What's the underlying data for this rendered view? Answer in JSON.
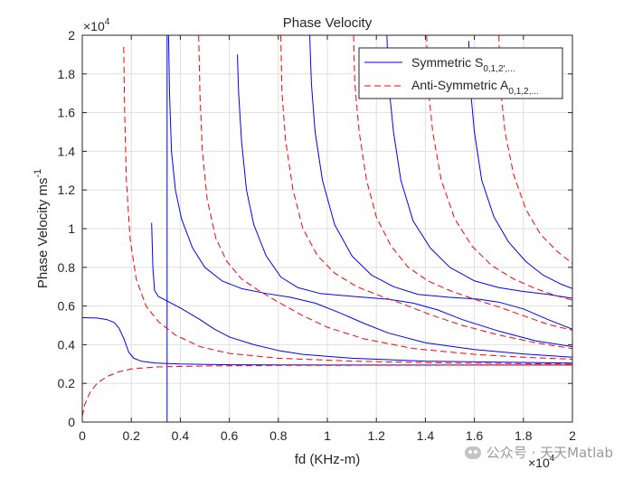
{
  "chart_data": {
    "type": "line",
    "title": "Phase Velocity",
    "xlabel": "fd (KHz-m)",
    "ylabel_base": "Phase Velocity ms",
    "ylabel_sup": "-1",
    "x_multiplier": "×10",
    "x_multiplier_exp": "4",
    "y_multiplier": "×10",
    "y_multiplier_exp": "4",
    "xlim": [
      0,
      20000
    ],
    "ylim": [
      0,
      20000
    ],
    "xticks": [
      0,
      2000,
      4000,
      6000,
      8000,
      10000,
      12000,
      14000,
      16000,
      18000,
      20000
    ],
    "yticks": [
      0,
      2000,
      4000,
      6000,
      8000,
      10000,
      12000,
      14000,
      16000,
      18000,
      20000
    ],
    "xtick_labels": [
      "0",
      "0.2",
      "0.4",
      "0.6",
      "0.8",
      "1",
      "1.2",
      "1.4",
      "1.6",
      "1.8",
      "2"
    ],
    "ytick_labels": [
      "0",
      "0.2",
      "0.4",
      "0.6",
      "0.8",
      "1",
      "1.2",
      "1.4",
      "1.6",
      "1.8",
      "2"
    ],
    "grid": true,
    "legend_position": "top-right",
    "legend": [
      {
        "label": "Symmetric S",
        "sub": "0,1,2',...",
        "color": "#0000ff",
        "style": "solid"
      },
      {
        "label": "Anti-Symmetric A",
        "sub": "0,1,2,...",
        "color": "#ff0000",
        "style": "dashed"
      }
    ],
    "series": [
      {
        "group": "symmetric",
        "color": "#0000ff",
        "style": "solid",
        "points": [
          [
            0,
            5400
          ],
          [
            600,
            5380
          ],
          [
            1000,
            5300
          ],
          [
            1300,
            5150
          ],
          [
            1500,
            4850
          ],
          [
            1700,
            4300
          ],
          [
            1900,
            3600
          ],
          [
            2100,
            3300
          ],
          [
            2400,
            3150
          ],
          [
            3000,
            3050
          ],
          [
            4000,
            3000
          ],
          [
            6000,
            2960
          ],
          [
            10000,
            2950
          ],
          [
            20000,
            2950
          ]
        ]
      },
      {
        "group": "symmetric",
        "color": "#0000ff",
        "style": "dashed_mark",
        "points": [
          [
            2830,
            10300
          ],
          [
            2880,
            8000
          ],
          [
            2950,
            6800
          ],
          [
            3100,
            6500
          ],
          [
            3400,
            6300
          ],
          [
            4000,
            5900
          ],
          [
            4800,
            5300
          ],
          [
            5400,
            4800
          ],
          [
            6000,
            4400
          ],
          [
            7000,
            4000
          ],
          [
            8000,
            3700
          ],
          [
            9000,
            3500
          ],
          [
            11000,
            3300
          ],
          [
            14000,
            3150
          ],
          [
            20000,
            3050
          ]
        ]
      },
      {
        "group": "symmetric",
        "color": "#0000ff",
        "style": "solid",
        "points": [
          [
            3460,
            0
          ],
          [
            3460,
            20000
          ]
        ]
      },
      {
        "group": "symmetric",
        "color": "#0000ff",
        "style": "solid",
        "points": [
          [
            3520,
            20000
          ],
          [
            3560,
            17000
          ],
          [
            3640,
            14000
          ],
          [
            3800,
            12000
          ],
          [
            4050,
            10500
          ],
          [
            4500,
            9000
          ],
          [
            5000,
            8000
          ],
          [
            5700,
            7300
          ],
          [
            6500,
            6900
          ],
          [
            7500,
            6650
          ],
          [
            8500,
            6450
          ],
          [
            9500,
            6150
          ],
          [
            10500,
            5650
          ],
          [
            11500,
            5100
          ],
          [
            12500,
            4600
          ],
          [
            14000,
            4100
          ],
          [
            16000,
            3750
          ],
          [
            18000,
            3520
          ],
          [
            20000,
            3350
          ]
        ]
      },
      {
        "group": "symmetric",
        "color": "#0000ff",
        "style": "solid",
        "points": [
          [
            6330,
            19000
          ],
          [
            6380,
            17000
          ],
          [
            6500,
            14500
          ],
          [
            6700,
            12000
          ],
          [
            7000,
            10200
          ],
          [
            7500,
            8600
          ],
          [
            8100,
            7500
          ],
          [
            8800,
            6950
          ],
          [
            9700,
            6650
          ],
          [
            11000,
            6500
          ],
          [
            12500,
            6350
          ],
          [
            13500,
            6150
          ],
          [
            14500,
            5800
          ],
          [
            15500,
            5300
          ],
          [
            17000,
            4700
          ],
          [
            18500,
            4200
          ],
          [
            20000,
            3900
          ]
        ]
      },
      {
        "group": "symmetric",
        "color": "#0000ff",
        "style": "solid",
        "points": [
          [
            9280,
            20000
          ],
          [
            9350,
            17500
          ],
          [
            9500,
            15000
          ],
          [
            9800,
            12500
          ],
          [
            10300,
            10200
          ],
          [
            11000,
            8600
          ],
          [
            11800,
            7600
          ],
          [
            12700,
            7000
          ],
          [
            13700,
            6600
          ],
          [
            15000,
            6450
          ],
          [
            16200,
            6350
          ],
          [
            17000,
            6200
          ],
          [
            18000,
            5850
          ],
          [
            19000,
            5300
          ],
          [
            20000,
            4800
          ]
        ]
      },
      {
        "group": "symmetric",
        "color": "#0000ff",
        "style": "solid",
        "points": [
          [
            12430,
            20000
          ],
          [
            12500,
            17500
          ],
          [
            12700,
            15000
          ],
          [
            13000,
            12500
          ],
          [
            13500,
            10400
          ],
          [
            14200,
            9000
          ],
          [
            15000,
            8000
          ],
          [
            16000,
            7300
          ],
          [
            17000,
            6950
          ],
          [
            18000,
            6750
          ],
          [
            19000,
            6600
          ],
          [
            20000,
            6400
          ]
        ]
      },
      {
        "group": "symmetric",
        "color": "#0000ff",
        "style": "solid",
        "points": [
          [
            15770,
            19700
          ],
          [
            15820,
            17500
          ],
          [
            16000,
            15000
          ],
          [
            16300,
            12500
          ],
          [
            16800,
            10600
          ],
          [
            17400,
            9300
          ],
          [
            18100,
            8300
          ],
          [
            18800,
            7600
          ],
          [
            19500,
            7150
          ],
          [
            20000,
            6900
          ]
        ]
      },
      {
        "group": "antisymmetric",
        "color": "#ff0000",
        "style": "dashed",
        "points": [
          [
            0,
            300
          ],
          [
            100,
            900
          ],
          [
            300,
            1500
          ],
          [
            600,
            2000
          ],
          [
            1000,
            2350
          ],
          [
            1500,
            2600
          ],
          [
            2000,
            2750
          ],
          [
            3000,
            2850
          ],
          [
            5000,
            2900
          ],
          [
            8000,
            2930
          ],
          [
            20000,
            2950
          ]
        ]
      },
      {
        "group": "antisymmetric",
        "color": "#ff0000",
        "style": "dashed",
        "points": [
          [
            1690,
            19400
          ],
          [
            1730,
            16000
          ],
          [
            1800,
            12500
          ],
          [
            1950,
            9500
          ],
          [
            2200,
            7400
          ],
          [
            2600,
            6000
          ],
          [
            3100,
            5200
          ],
          [
            3800,
            4500
          ],
          [
            4800,
            3900
          ],
          [
            6000,
            3550
          ],
          [
            8000,
            3300
          ],
          [
            11000,
            3150
          ],
          [
            15000,
            3050
          ],
          [
            20000,
            3000
          ]
        ]
      },
      {
        "group": "antisymmetric",
        "color": "#ff0000",
        "style": "dashed",
        "points": [
          [
            4750,
            20000
          ],
          [
            4800,
            17000
          ],
          [
            4900,
            14000
          ],
          [
            5100,
            11500
          ],
          [
            5450,
            9500
          ],
          [
            5900,
            8300
          ],
          [
            6500,
            7400
          ],
          [
            7200,
            6800
          ],
          [
            8000,
            6200
          ],
          [
            9000,
            5500
          ],
          [
            10000,
            4900
          ],
          [
            11500,
            4300
          ],
          [
            13500,
            3800
          ],
          [
            16000,
            3500
          ],
          [
            18000,
            3350
          ],
          [
            20000,
            3250
          ]
        ]
      },
      {
        "group": "antisymmetric",
        "color": "#ff0000",
        "style": "dashed",
        "points": [
          [
            8100,
            20000
          ],
          [
            8150,
            17000
          ],
          [
            8300,
            14500
          ],
          [
            8600,
            12000
          ],
          [
            9000,
            10000
          ],
          [
            9600,
            8600
          ],
          [
            10300,
            7700
          ],
          [
            11200,
            7000
          ],
          [
            12200,
            6500
          ],
          [
            13200,
            6050
          ],
          [
            14200,
            5550
          ],
          [
            15500,
            5000
          ],
          [
            17000,
            4500
          ],
          [
            18500,
            4100
          ],
          [
            20000,
            3800
          ]
        ]
      },
      {
        "group": "antisymmetric",
        "color": "#ff0000",
        "style": "dashed",
        "points": [
          [
            11070,
            20000
          ],
          [
            11120,
            17500
          ],
          [
            11300,
            15000
          ],
          [
            11600,
            12500
          ],
          [
            12000,
            10600
          ],
          [
            12600,
            9100
          ],
          [
            13300,
            8000
          ],
          [
            14100,
            7300
          ],
          [
            15000,
            6800
          ],
          [
            16000,
            6350
          ],
          [
            17000,
            5950
          ],
          [
            18000,
            5500
          ],
          [
            19000,
            5050
          ],
          [
            20000,
            4750
          ]
        ]
      },
      {
        "group": "antisymmetric",
        "color": "#ff0000",
        "style": "dashed",
        "points": [
          [
            14050,
            20000
          ],
          [
            14100,
            17500
          ],
          [
            14300,
            15000
          ],
          [
            14650,
            12500
          ],
          [
            15200,
            10500
          ],
          [
            15900,
            9100
          ],
          [
            16700,
            8100
          ],
          [
            17600,
            7400
          ],
          [
            18500,
            6900
          ],
          [
            19300,
            6550
          ],
          [
            20000,
            6300
          ]
        ]
      },
      {
        "group": "antisymmetric",
        "color": "#ff0000",
        "style": "dashed",
        "points": [
          [
            17000,
            20000
          ],
          [
            17050,
            17500
          ],
          [
            17250,
            15000
          ],
          [
            17600,
            12800
          ],
          [
            18100,
            11000
          ],
          [
            18700,
            9700
          ],
          [
            19400,
            8800
          ],
          [
            20000,
            8200
          ]
        ]
      }
    ]
  },
  "watermark": {
    "text": "公众号 · 天天Matlab",
    "icon": "wechat-icon"
  }
}
